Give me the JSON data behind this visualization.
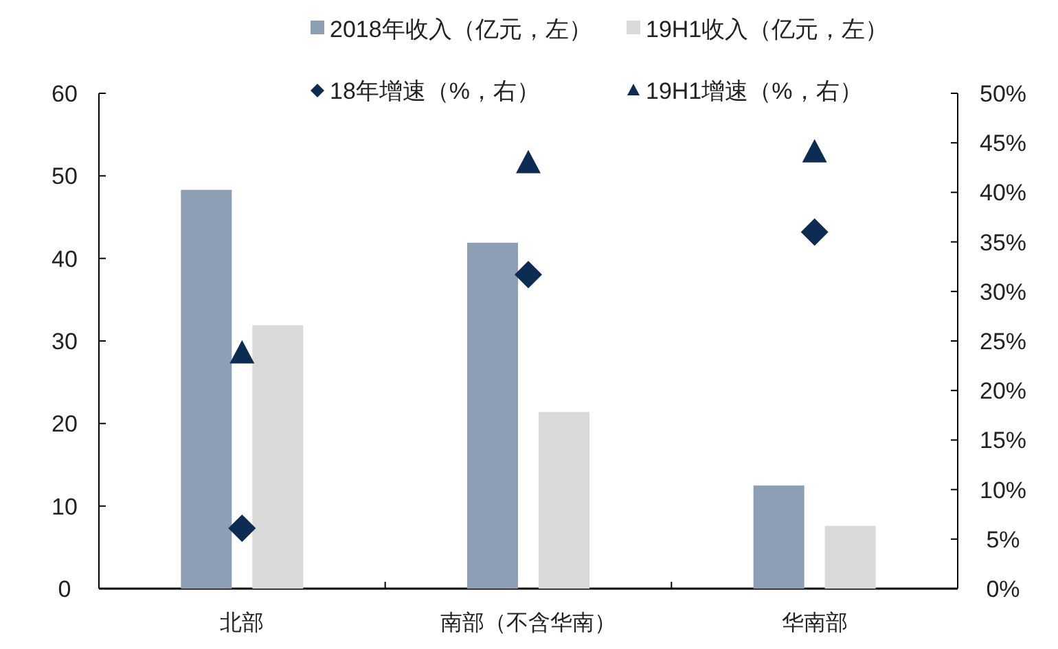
{
  "chart_data": {
    "type": "bar",
    "categories": [
      "北部",
      "南部（不含华南）",
      "华南部"
    ],
    "series": [
      {
        "name": "2018年收入（亿元，左）",
        "color": "#8c9fb5",
        "values": [
          48.3,
          41.9,
          12.5
        ]
      },
      {
        "name": "19H1收入（亿元，左）",
        "color": "#d9d9d9",
        "values": [
          31.9,
          21.4,
          7.6
        ]
      },
      {
        "name": "18年增速（%，右）",
        "type": "scatter",
        "marker": "diamond",
        "axis": "y2",
        "color": "#0d2c54",
        "values": [
          6.1,
          31.7,
          36.0
        ]
      },
      {
        "name": "19H1增速（%，右）",
        "type": "scatter",
        "marker": "triangle",
        "axis": "y2",
        "color": "#0d2c54",
        "values": [
          23.7,
          42.9,
          44.0
        ]
      }
    ],
    "ylim": [
      0,
      60
    ],
    "yticks": [
      0,
      10,
      20,
      30,
      40,
      50,
      60
    ],
    "y2lim": [
      0,
      50
    ],
    "y2ticks": [
      {
        "value": 0,
        "label": "0%"
      },
      {
        "value": 5,
        "label": "5%"
      },
      {
        "value": 10,
        "label": "10%"
      },
      {
        "value": 15,
        "label": "15%"
      },
      {
        "value": 20,
        "label": "20%"
      },
      {
        "value": 25,
        "label": "25%"
      },
      {
        "value": 30,
        "label": "30%"
      },
      {
        "value": 35,
        "label": "35%"
      },
      {
        "value": 40,
        "label": "40%"
      },
      {
        "value": 45,
        "label": "45%"
      },
      {
        "value": 50,
        "label": "50%"
      }
    ],
    "grid": false,
    "legend": "top"
  }
}
